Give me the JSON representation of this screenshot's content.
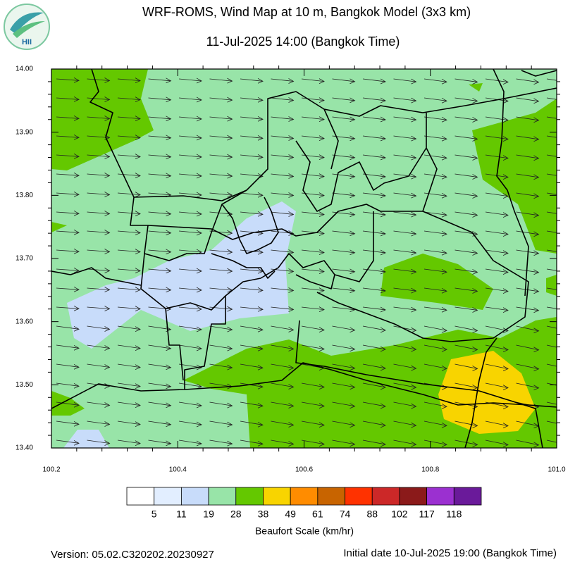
{
  "header": {
    "title": "WRF-ROMS, Wind Map at 10 m, Bangkok Model (3x3 km)",
    "subtitle": "11-Jul-2025 14:00 (Bangkok Time)",
    "logo": "HII"
  },
  "chart_data": {
    "type": "map",
    "xlim": [
      100.2,
      101.0
    ],
    "ylim": [
      13.4,
      14.0
    ],
    "xticks": [
      100.2,
      100.4,
      100.6,
      100.8,
      {
        "value": 101.0,
        "label": "101.0"
      }
    ],
    "yticks": [
      {
        "value": 14.0,
        "label": "14.00"
      },
      {
        "value": 13.9,
        "label": "13.90"
      },
      {
        "value": 13.8,
        "label": "13.80"
      },
      {
        "value": 13.7,
        "label": "13.70"
      },
      {
        "value": 13.6,
        "label": "13.60"
      },
      {
        "value": 13.5,
        "label": "13.50"
      },
      {
        "value": 13.4,
        "label": "13.40"
      }
    ]
  },
  "colorbar": {
    "label": "Beaufort Scale (km/hr)",
    "levels": [
      5,
      11,
      19,
      28,
      38,
      49,
      61,
      74,
      88,
      102,
      117,
      118
    ],
    "colors": [
      "#ffffff",
      "#e2eeff",
      "#c8dcfa",
      "#98e4a8",
      "#64c800",
      "#f8d400",
      "#ff8c00",
      "#c86400",
      "#ff3200",
      "#cc2828",
      "#8b1a1a",
      "#9b30d0",
      "#6a1a9a"
    ]
  },
  "footer": {
    "version": "Version: 05.02.C320202.20230927",
    "initial": "Initial date 10-Jul-2025 19:00 (Bangkok Time)"
  }
}
